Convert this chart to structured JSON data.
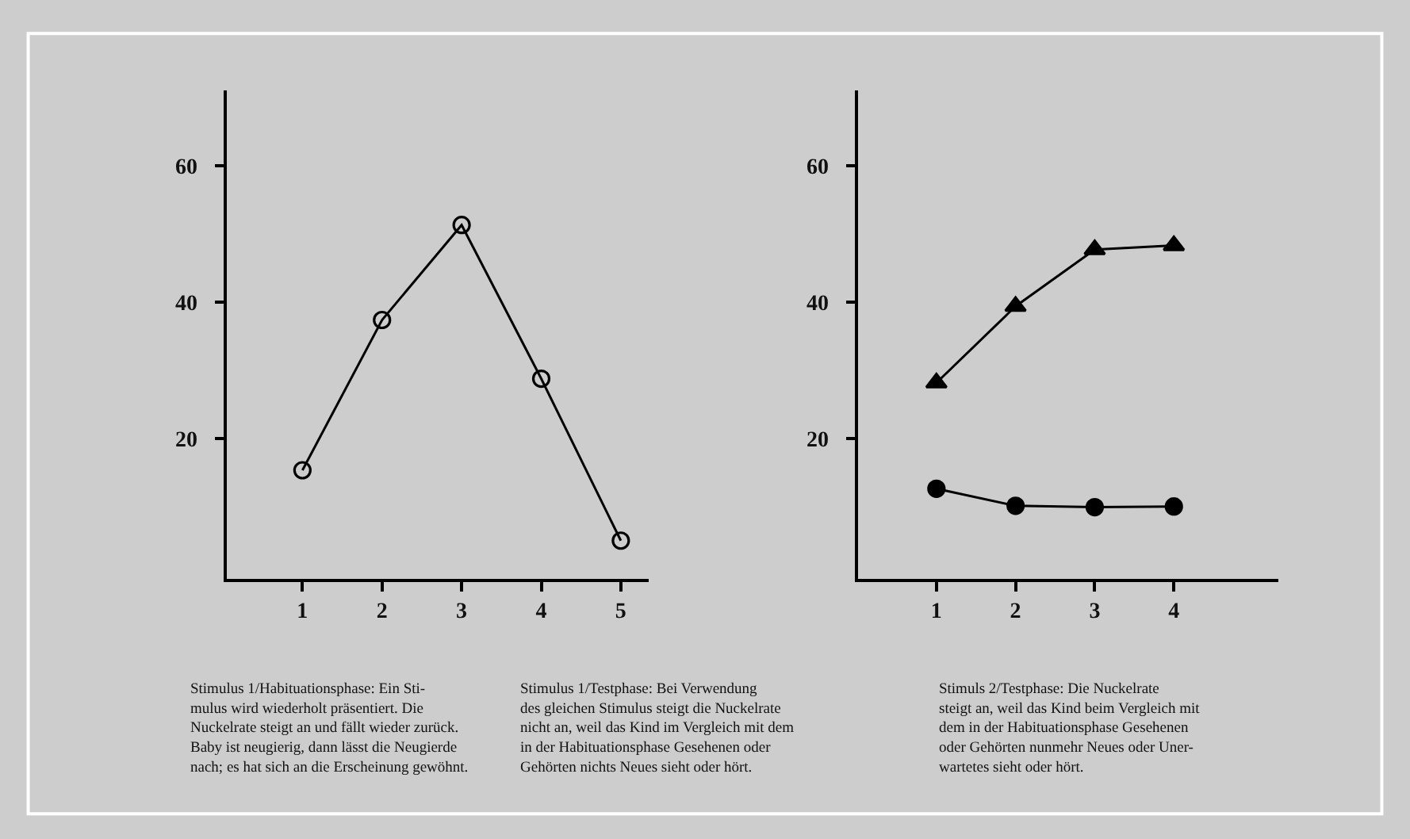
{
  "chart_data": [
    {
      "type": "line",
      "x": [
        1,
        2,
        3,
        4,
        5
      ],
      "xlim": [
        0.05,
        5.35
      ],
      "xticks": [
        1,
        2,
        3,
        4,
        5
      ],
      "ylim": [
        -0.5,
        71
      ],
      "yticks": [
        20,
        40,
        60
      ],
      "grid": false,
      "marker": "circle-open",
      "line_style": "solid",
      "series": [
        {
          "color": "#000000",
          "values": [
            15.4,
            37.4,
            51.3,
            28.8,
            5.1
          ]
        }
      ],
      "annotations": [
        "Stimulus 1/Habituationsphase: Ein Sti-\nmulus wird wiederholt präsentiert. Die\nNuckelrate steigt an und fällt wieder zurück.\nBaby ist neugierig, dann lässt die Neugierde\nnach; es hat sich an die Erscheinung gewöhnt."
      ]
    },
    {
      "type": "line",
      "x": [
        1,
        2,
        3,
        4
      ],
      "xlim": [
        0.01,
        5.32
      ],
      "xticks": [
        1,
        2,
        3,
        4
      ],
      "ylim": [
        -0.5,
        71
      ],
      "yticks": [
        20,
        40,
        60
      ],
      "grid": false,
      "line_style": "solid",
      "series": [
        {
          "color": "#000000",
          "marker": "triangle",
          "values": [
            28.2,
            39.4,
            47.7,
            48.3
          ]
        },
        {
          "color": "#000000",
          "marker": "circle",
          "values": [
            12.7,
            10.2,
            10.0,
            10.1
          ]
        }
      ],
      "annotations": [
        "Stimulus 1/Testphase: Bei Verwendung\ndes gleichen Stimulus steigt die Nuckelrate\nnicht an, weil das Kind im Vergleich mit dem\nin der Habituationsphase Gesehenen oder\nGehörten nichts Neues sieht oder hört.",
        "Stimuls 2/Testphase: Die Nuckelrate\nsteigt an, weil das Kind beim Vergleich mit\ndem in der Habituationsphase Gesehenen\noder Gehörten nunmehr Neues oder Uner-\nwartetes sieht oder hört."
      ]
    }
  ]
}
